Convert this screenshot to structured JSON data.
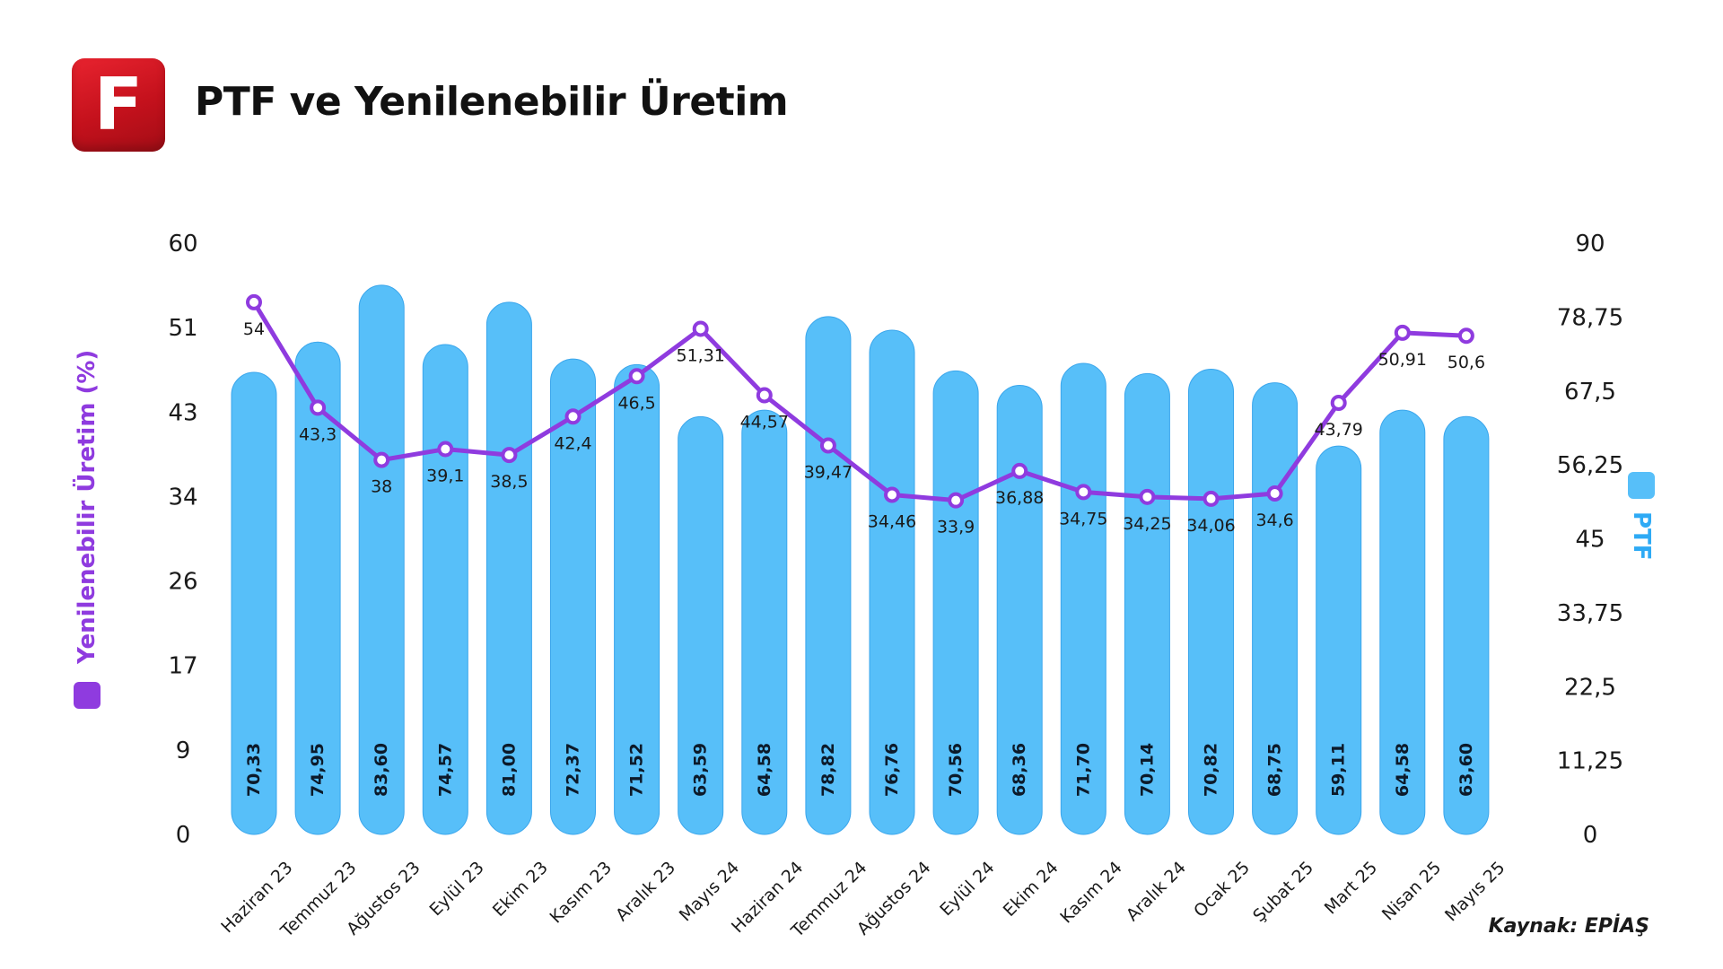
{
  "header": {
    "logo_letter": "F",
    "title": "PTF ve Yenilenebilir Üretim"
  },
  "source": "Kaynak: EPİAŞ",
  "colors": {
    "bar": "#57bff9",
    "bar_stroke": "#3aa6ec",
    "line": "#8f3bdf",
    "logo": "#d81b27"
  },
  "chart_data": {
    "type": "bar+line",
    "categories": [
      "Haziran 23",
      "Temmuz 23",
      "Ağustos 23",
      "Eylül 23",
      "Ekim 23",
      "Kasım 23",
      "Aralık 23",
      "Mayıs 24",
      "Haziran 24",
      "Temmuz 24",
      "Ağustos 24",
      "Eylül 24",
      "Ekim 24",
      "Kasım 24",
      "Aralık 24",
      "Ocak 25",
      "Şubat 25",
      "Mart 25",
      "Nisan 25",
      "Mayıs 25"
    ],
    "series": [
      {
        "name": "PTF",
        "kind": "bar",
        "axis": "right",
        "values": [
          70.33,
          74.95,
          83.6,
          74.57,
          81.0,
          72.37,
          71.52,
          63.59,
          64.58,
          78.82,
          76.76,
          70.56,
          68.36,
          71.7,
          70.14,
          70.82,
          68.75,
          59.11,
          64.58,
          63.6
        ],
        "labels": [
          "70,33",
          "74,95",
          "83,60",
          "74,57",
          "81,00",
          "72,37",
          "71,52",
          "63,59",
          "64,58",
          "78,82",
          "76,76",
          "70,56",
          "68,36",
          "71,70",
          "70,14",
          "70,82",
          "68,75",
          "59,11",
          "64,58",
          "63,60"
        ]
      },
      {
        "name": "Yenilenebilir Üretim (%)",
        "kind": "line",
        "axis": "left",
        "values": [
          54,
          43.3,
          38,
          39.1,
          38.5,
          42.4,
          46.5,
          51.31,
          44.57,
          39.47,
          34.46,
          33.9,
          36.88,
          34.75,
          34.25,
          34.06,
          34.6,
          43.79,
          50.91,
          50.6
        ],
        "labels": [
          "54",
          "43,3",
          "38",
          "39,1",
          "38,5",
          "42,4",
          "46,5",
          "51,31",
          "44,57",
          "39,47",
          "34,46",
          "33,9",
          "36,88",
          "34,75",
          "34,25",
          "34,06",
          "34,6",
          "43,79",
          "50,91",
          "50,6"
        ]
      }
    ],
    "y_left": {
      "label": "Yenilenebilir Üretim (%)",
      "range": [
        0,
        60
      ],
      "ticks": [
        0,
        9,
        17,
        26,
        34,
        43,
        51,
        60
      ]
    },
    "y_right": {
      "label": "PTF",
      "range": [
        0,
        90
      ],
      "ticks": [
        "0",
        "11,25",
        "22,5",
        "33,75",
        "45",
        "56,25",
        "67,5",
        "78,75",
        "90"
      ]
    },
    "grid": false
  }
}
